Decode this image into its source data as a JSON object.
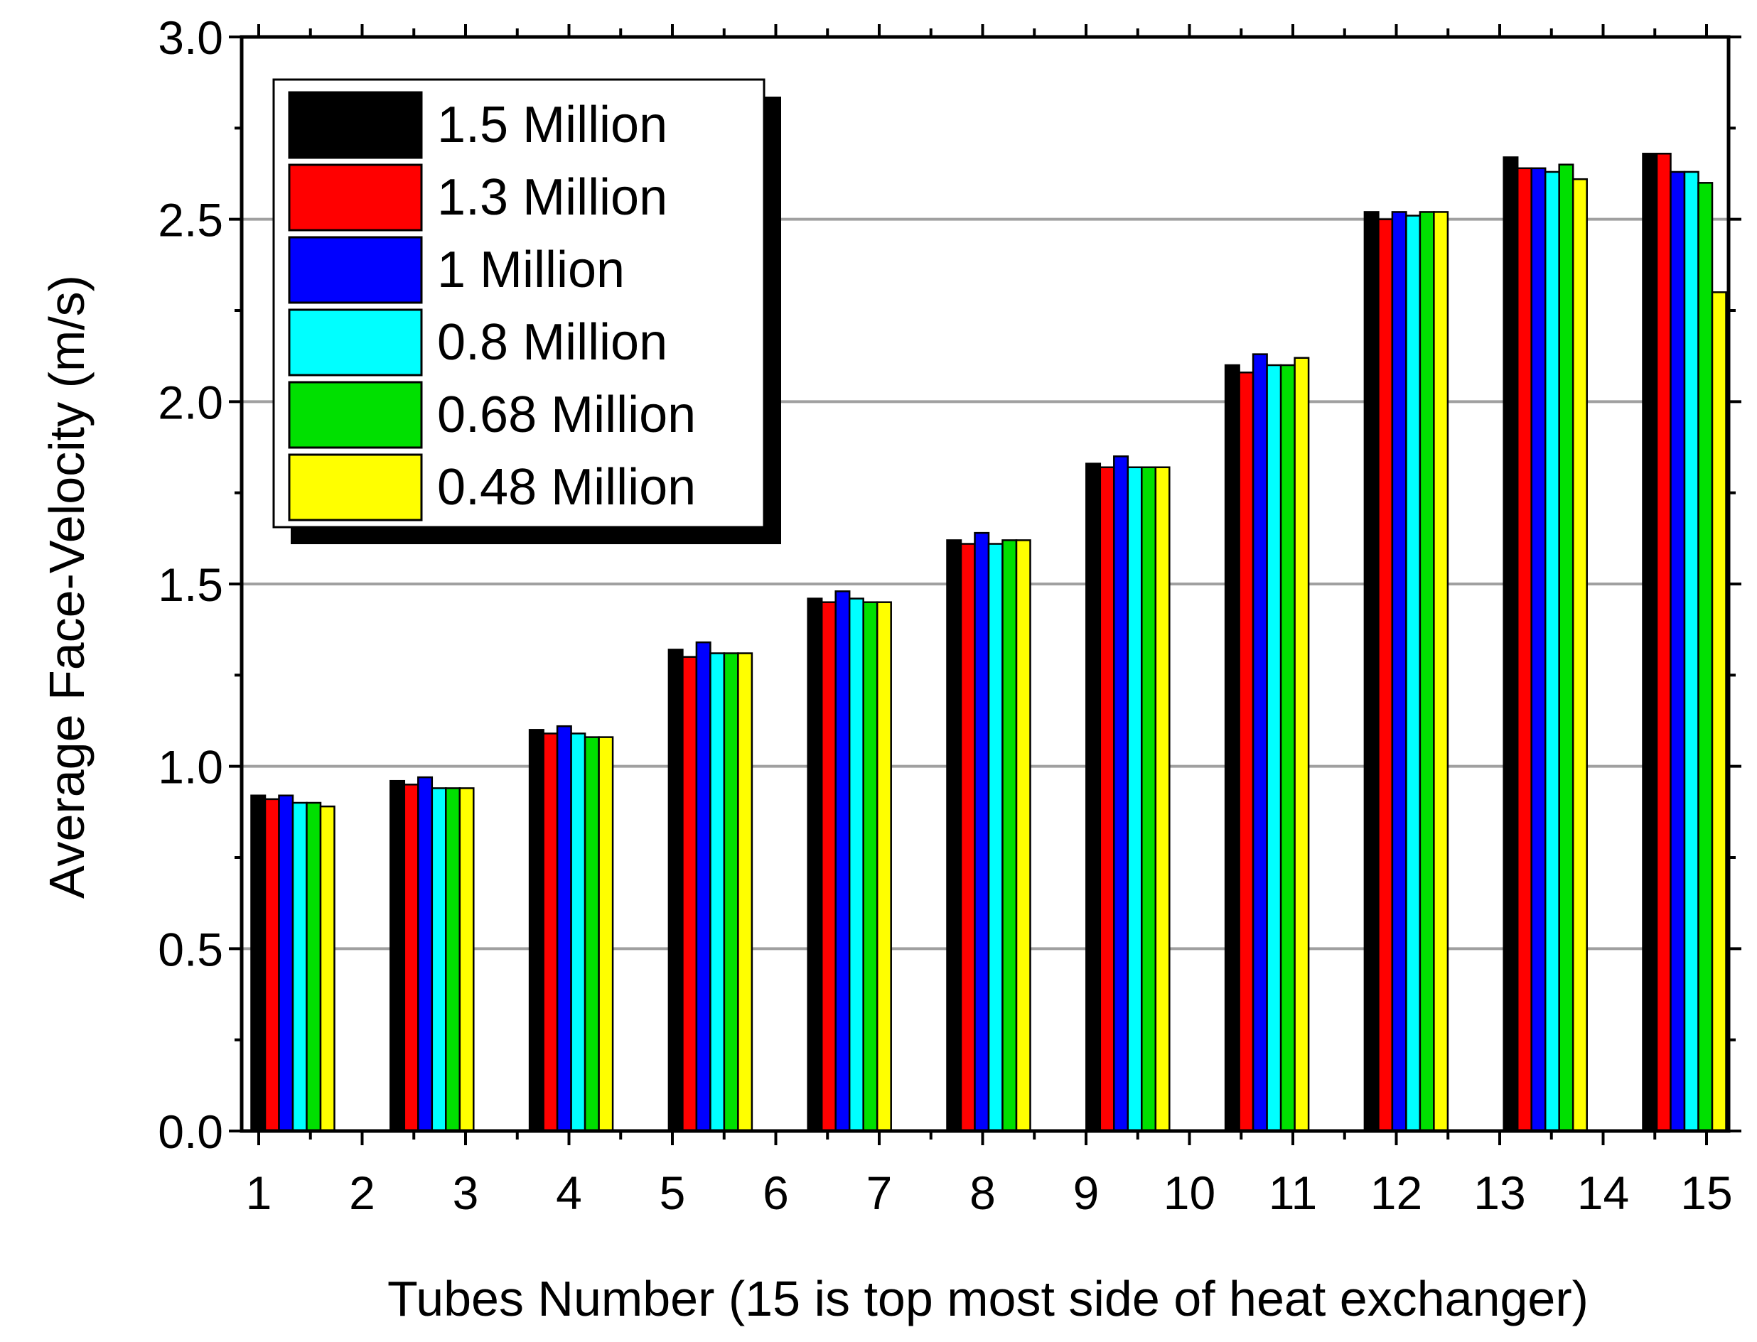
{
  "chart_data": {
    "type": "bar",
    "title": "",
    "xlabel": "Tubes Number (15 is top most side of heat exchanger)",
    "ylabel": "Average Face-Velocity (m/s)",
    "ylim": [
      0,
      3.0
    ],
    "yticks": [
      "0.0",
      "0.5",
      "1.0",
      "1.5",
      "2.0",
      "2.5",
      "3.0"
    ],
    "xticks": [
      "1",
      "2",
      "3",
      "4",
      "5",
      "6",
      "7",
      "8",
      "9",
      "10",
      "11",
      "12",
      "13",
      "14",
      "15"
    ],
    "grid": "horizontal",
    "legend_position": "top-left",
    "groups": [
      "1",
      "3",
      "4",
      "5",
      "7",
      "8",
      "10",
      "11",
      "12",
      "14",
      "15"
    ],
    "series": [
      {
        "name": "1.5 Million",
        "color": "#000000",
        "values": [
          0.92,
          0.96,
          1.1,
          1.32,
          1.46,
          1.62,
          1.83,
          2.1,
          2.52,
          2.67,
          2.68
        ]
      },
      {
        "name": "1.3 Million",
        "color": "#ff0000",
        "values": [
          0.91,
          0.95,
          1.09,
          1.3,
          1.45,
          1.61,
          1.82,
          2.08,
          2.5,
          2.64,
          2.68
        ]
      },
      {
        "name": "1 Million",
        "color": "#0000ff",
        "values": [
          0.92,
          0.97,
          1.11,
          1.34,
          1.48,
          1.64,
          1.85,
          2.13,
          2.52,
          2.64,
          2.63
        ]
      },
      {
        "name": "0.8 Million",
        "color": "#00ffff",
        "values": [
          0.9,
          0.94,
          1.09,
          1.31,
          1.46,
          1.61,
          1.82,
          2.1,
          2.51,
          2.63,
          2.63
        ]
      },
      {
        "name": "0.68 Million",
        "color": "#00e000",
        "values": [
          0.9,
          0.94,
          1.08,
          1.31,
          1.45,
          1.62,
          1.82,
          2.1,
          2.52,
          2.65,
          2.6
        ]
      },
      {
        "name": "0.48 Million",
        "color": "#ffff00",
        "values": [
          0.89,
          0.94,
          1.08,
          1.31,
          1.45,
          1.62,
          1.82,
          2.12,
          2.52,
          2.61,
          2.3
        ]
      }
    ]
  }
}
